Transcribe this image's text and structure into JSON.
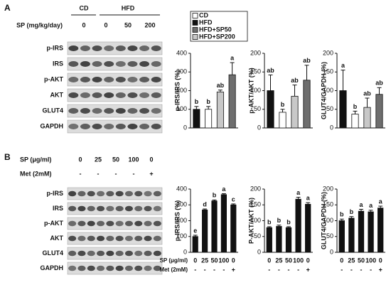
{
  "panels": {
    "a": "A",
    "b": "B"
  },
  "blots": {
    "a": {
      "group_labels": [
        "CD",
        "HFD"
      ],
      "dose_label": "SP (mg/kg/day)",
      "doses": [
        "0",
        "0",
        "50",
        "200"
      ],
      "rows": [
        "p-IRS",
        "IRS",
        "p-AKT",
        "AKT",
        "GLUT4",
        "GAPDH"
      ]
    },
    "b": {
      "dose_label": "SP (μg/ml)",
      "doses": [
        "0",
        "25",
        "50",
        "100",
        "0"
      ],
      "met_label": "Met (2mM)",
      "met": [
        "-",
        "-",
        "-",
        "-",
        "+"
      ],
      "rows": [
        "p-IRS",
        "IRS",
        "p-AKT",
        "AKT",
        "GLUT4",
        "GAPDH"
      ]
    }
  },
  "chart_data": [
    {
      "type": "bar",
      "ylabel": "p-IRS/IRS (%)",
      "values": [
        100,
        100,
        193,
        285
      ],
      "errors": [
        15,
        15,
        10,
        65
      ],
      "annotations": [
        "b",
        "b",
        "ab",
        "a"
      ],
      "colors": [
        "#111111",
        "#ffffff",
        "#c8c8c8",
        "#6e6e6e"
      ],
      "ylim": [
        0,
        400
      ],
      "yticks": [
        0,
        100,
        200,
        300,
        400
      ],
      "legend": [
        {
          "name": "CD",
          "color": "#ffffff"
        },
        {
          "name": "HFD",
          "color": "#111111"
        },
        {
          "name": "HFD+SP50",
          "color": "#6e6e6e"
        },
        {
          "name": "HFD+SP200",
          "color": "#c8c8c8"
        }
      ]
    },
    {
      "type": "bar",
      "ylabel": "p-AKT/AKT (%)",
      "values": [
        100,
        42,
        85,
        128
      ],
      "errors": [
        42,
        8,
        30,
        40
      ],
      "annotations": [
        "ab",
        "b",
        "ab",
        "ab"
      ],
      "colors": [
        "#111111",
        "#ffffff",
        "#c8c8c8",
        "#6e6e6e"
      ],
      "ylim": [
        0,
        200
      ],
      "yticks": [
        0,
        50,
        100,
        150,
        200
      ]
    },
    {
      "type": "bar",
      "ylabel": "GLUT4/GAPDH (%)",
      "values": [
        100,
        37,
        55,
        90
      ],
      "errors": [
        55,
        8,
        25,
        18
      ],
      "annotations": [
        "a",
        "b",
        "ab",
        "ab"
      ],
      "colors": [
        "#111111",
        "#ffffff",
        "#c8c8c8",
        "#6e6e6e"
      ],
      "ylim": [
        0,
        200
      ],
      "yticks": [
        0,
        50,
        100,
        150,
        200
      ]
    },
    {
      "type": "bar",
      "ylabel": "p-IRS/IRS (%)",
      "categories": [
        "0",
        "25",
        "50",
        "100",
        "0"
      ],
      "met": [
        "-",
        "-",
        "-",
        "-",
        "+"
      ],
      "xlabel": "SP (μg/ml)",
      "met_label": "Met (2mM)",
      "values": [
        100,
        268,
        325,
        365,
        300
      ],
      "errors": [
        8,
        6,
        6,
        6,
        6
      ],
      "annotations": [
        "e",
        "d",
        "b",
        "a",
        "c"
      ],
      "color": "#111111",
      "ylim": [
        0,
        400
      ],
      "yticks": [
        0,
        100,
        200,
        300,
        400
      ]
    },
    {
      "type": "bar",
      "ylabel": "P-AKT/AKT (%)",
      "categories": [
        "0",
        "25",
        "50",
        "100",
        "0"
      ],
      "met": [
        "-",
        "-",
        "-",
        "-",
        "+"
      ],
      "values": [
        78,
        82,
        78,
        168,
        152
      ],
      "errors": [
        3,
        4,
        3,
        6,
        5
      ],
      "annotations": [
        "b",
        "b",
        "b",
        "a",
        "a"
      ],
      "color": "#111111",
      "ylim": [
        0,
        200
      ],
      "yticks": [
        0,
        50,
        100,
        150,
        200
      ]
    },
    {
      "type": "bar",
      "ylabel": "GLUT4/GAPDH (%)",
      "categories": [
        "0",
        "25",
        "50",
        "100",
        "0"
      ],
      "met": [
        "-",
        "-",
        "-",
        "-",
        "+"
      ],
      "values": [
        100,
        108,
        130,
        128,
        140
      ],
      "errors": [
        5,
        5,
        6,
        5,
        6
      ],
      "annotations": [
        "b",
        "b",
        "a",
        "a",
        "a"
      ],
      "color": "#111111",
      "ylim": [
        0,
        200
      ],
      "yticks": [
        0,
        50,
        100,
        150,
        200
      ]
    }
  ]
}
